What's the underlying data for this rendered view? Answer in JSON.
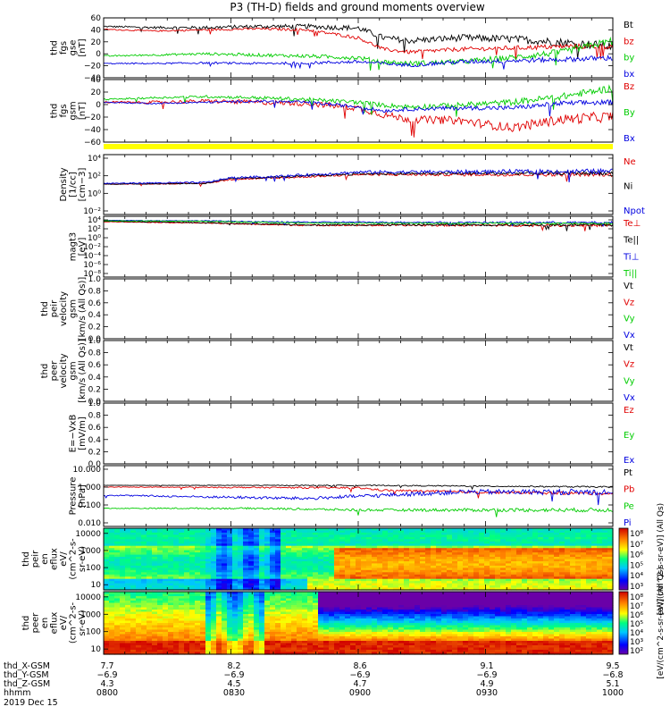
{
  "title": "P3 (TH-D) fields and ground moments overview",
  "chart_data": [
    {
      "id": "fgs_dsl",
      "type": "line",
      "ylabel": [
        "thd",
        "fgs",
        "gse",
        "[nT]"
      ],
      "yticks": [
        "60",
        "40",
        "20",
        "0",
        "−20",
        "−40"
      ],
      "ylim": [
        -40,
        65
      ],
      "series": [
        {
          "name": "Bt",
          "color": "#000000",
          "x": [
            0,
            0.1,
            0.2,
            0.3,
            0.4,
            0.5,
            0.55,
            0.6,
            0.7,
            0.8,
            0.9,
            1.0
          ],
          "y": [
            50,
            48,
            48,
            50,
            50,
            47,
            30,
            25,
            30,
            28,
            22,
            15
          ],
          "noise": 5
        },
        {
          "name": "bz",
          "color": "#e00000",
          "x": [
            0,
            0.1,
            0.2,
            0.3,
            0.4,
            0.5,
            0.55,
            0.6,
            0.7,
            0.8,
            0.9,
            1.0
          ],
          "y": [
            45,
            42,
            44,
            46,
            44,
            30,
            10,
            5,
            10,
            12,
            15,
            15
          ],
          "noise": 3
        },
        {
          "name": "by",
          "color": "#00cc00",
          "x": [
            0,
            0.1,
            0.2,
            0.3,
            0.4,
            0.5,
            0.55,
            0.6,
            0.7,
            0.8,
            0.9,
            1.0
          ],
          "y": [
            -2,
            0,
            2,
            0,
            -2,
            -5,
            -12,
            -15,
            -12,
            -5,
            5,
            25
          ],
          "noise": 4
        },
        {
          "name": "bx",
          "color": "#0000e0",
          "x": [
            0,
            0.1,
            0.2,
            0.3,
            0.4,
            0.5,
            0.55,
            0.6,
            0.7,
            0.8,
            0.9,
            1.0
          ],
          "y": [
            -15,
            -15,
            -14,
            -15,
            -14,
            -12,
            -15,
            -18,
            -12,
            -10,
            -8,
            -5
          ],
          "noise": 3
        }
      ]
    },
    {
      "id": "fgs_gsm",
      "type": "line",
      "ylabel": [
        "thd",
        "fgs",
        "gsm",
        "[nT]"
      ],
      "yticks": [
        "40",
        "20",
        "0",
        "−20",
        "−40",
        "−60"
      ],
      "ylim": [
        -70,
        40
      ],
      "series": [
        {
          "name": "Bz",
          "color": "#e00000",
          "x": [
            0,
            0.1,
            0.2,
            0.3,
            0.4,
            0.5,
            0.55,
            0.6,
            0.7,
            0.8,
            0.9,
            1.0
          ],
          "y": [
            0,
            0,
            2,
            0,
            -2,
            -10,
            -22,
            -30,
            -32,
            -45,
            -30,
            -25
          ],
          "noise": 6
        },
        {
          "name": "By",
          "color": "#00cc00",
          "x": [
            0,
            0.1,
            0.2,
            0.3,
            0.4,
            0.5,
            0.55,
            0.6,
            0.7,
            0.8,
            0.9,
            1.0
          ],
          "y": [
            5,
            8,
            10,
            8,
            5,
            0,
            -5,
            -8,
            -5,
            0,
            10,
            25
          ],
          "noise": 4
        },
        {
          "name": "Bx",
          "color": "#0000e0",
          "x": [
            0,
            0.1,
            0.2,
            0.3,
            0.4,
            0.5,
            0.55,
            0.6,
            0.7,
            0.8,
            0.9,
            1.0
          ],
          "y": [
            0,
            -2,
            0,
            2,
            0,
            -8,
            -15,
            -12,
            -10,
            -10,
            -2,
            0
          ],
          "noise": 3
        }
      ]
    },
    {
      "id": "density",
      "type": "line",
      "ylabel": [
        "Density",
        "[1/cc]",
        "[cm−3]"
      ],
      "yticks": [
        "10⁴",
        "10²",
        "10⁰",
        "10⁻²"
      ],
      "ylim": [
        -3,
        4.5
      ],
      "log": true,
      "series": [
        {
          "name": "Ne",
          "color": "#e00000",
          "x": [
            0,
            0.2,
            0.25,
            0.35,
            0.5,
            1.0
          ],
          "y": [
            0.8,
            0.9,
            1.4,
            1.6,
            2.0,
            2.0
          ],
          "noise": 0.15
        },
        {
          "name": "Ni",
          "color": "#000000",
          "x": [
            0,
            0.2,
            0.25,
            0.35,
            0.5,
            1.0
          ],
          "y": [
            0.8,
            0.9,
            1.5,
            1.7,
            2.1,
            2.2
          ],
          "noise": 0.15
        },
        {
          "name": "Npot",
          "color": "#0000e0",
          "x": [
            0,
            0.2,
            0.25,
            0.35,
            0.5,
            1.0
          ],
          "y": [
            0.9,
            1.0,
            1.6,
            1.8,
            2.3,
            2.4
          ],
          "noise": 0.2
        }
      ]
    },
    {
      "id": "temperature",
      "type": "line",
      "ylabel": [
        "magt3",
        "[eV]"
      ],
      "yticks": [
        "10⁴",
        "10²",
        "10⁰",
        "10⁻²",
        "10⁻⁴",
        "10⁻⁶",
        "10⁻⁸"
      ],
      "ylim": [
        -9,
        4.5
      ],
      "log": true,
      "series": [
        {
          "name": "Te⊥",
          "color": "#e00000",
          "x": [
            0,
            0.2,
            0.3,
            0.4,
            1.0
          ],
          "y": [
            3.3,
            3.0,
            2.7,
            2.5,
            2.5
          ],
          "noise": 0.2
        },
        {
          "name": "Te||",
          "color": "#000000",
          "x": [
            0,
            0.2,
            0.3,
            0.4,
            1.0
          ],
          "y": [
            3.4,
            3.1,
            2.8,
            2.6,
            2.6
          ],
          "noise": 0.2
        },
        {
          "name": "Ti⊥",
          "color": "#0000e0",
          "x": [
            0,
            0.2,
            0.3,
            0.4,
            1.0
          ],
          "y": [
            3.6,
            3.5,
            3.3,
            3.2,
            3.1
          ],
          "noise": 0.15
        },
        {
          "name": "Ti||",
          "color": "#00cc00",
          "x": [
            0,
            0.2,
            0.3,
            0.4,
            1.0
          ],
          "y": [
            3.5,
            3.4,
            3.2,
            3.0,
            2.9
          ],
          "noise": 0.15
        }
      ]
    },
    {
      "id": "peir_velocity",
      "type": "line",
      "ylabel": [
        "thd",
        "peir",
        "velocity",
        "gsm",
        "[km/s (All Qs)]"
      ],
      "yticks": [
        "1.0",
        "0.8",
        "0.6",
        "0.4",
        "0.2",
        "0.0"
      ],
      "ylim": [
        0,
        1
      ],
      "series": [
        {
          "name": "Vt",
          "color": "#000000",
          "x": [],
          "y": []
        },
        {
          "name": "Vz",
          "color": "#e00000",
          "x": [],
          "y": []
        },
        {
          "name": "Vy",
          "color": "#00cc00",
          "x": [],
          "y": []
        },
        {
          "name": "Vx",
          "color": "#0000e0",
          "x": [],
          "y": []
        }
      ]
    },
    {
      "id": "peer_velocity",
      "type": "line",
      "ylabel": [
        "thd",
        "peer",
        "velocity",
        "gsm",
        "[km/s (All Qs)]"
      ],
      "yticks": [
        "1.0",
        "0.8",
        "0.6",
        "0.4",
        "0.2",
        "0.0"
      ],
      "ylim": [
        0,
        1
      ],
      "series": [
        {
          "name": "Vt",
          "color": "#000000",
          "x": [],
          "y": []
        },
        {
          "name": "Vz",
          "color": "#e00000",
          "x": [],
          "y": []
        },
        {
          "name": "Vy",
          "color": "#00cc00",
          "x": [],
          "y": []
        },
        {
          "name": "Vx",
          "color": "#0000e0",
          "x": [],
          "y": []
        }
      ]
    },
    {
      "id": "efield",
      "type": "line",
      "ylabel": [
        "E=−VxB",
        "[mV/m]"
      ],
      "yticks": [
        "1.0",
        "0.8",
        "0.6",
        "0.4",
        "0.2",
        "0.0"
      ],
      "ylim": [
        0,
        1
      ],
      "series": [
        {
          "name": "Ez",
          "color": "#e00000",
          "x": [],
          "y": []
        },
        {
          "name": "Ey",
          "color": "#00cc00",
          "x": [],
          "y": []
        },
        {
          "name": "Ex",
          "color": "#0000e0",
          "x": [],
          "y": []
        }
      ]
    },
    {
      "id": "pressure",
      "type": "line",
      "ylabel": [
        "Pressure",
        "[nPa]"
      ],
      "yticks": [
        "10.000",
        "1.000",
        "0.100",
        "0.010"
      ],
      "ylim": [
        -2.5,
        1.2
      ],
      "log": true,
      "series": [
        {
          "name": "Pt",
          "color": "#000000",
          "x": [
            0,
            0.5,
            1.0
          ],
          "y": [
            0.0,
            0.0,
            -0.1
          ],
          "noise": 0.03
        },
        {
          "name": "Pb",
          "color": "#e00000",
          "x": [
            0,
            0.5,
            0.55,
            0.7,
            1.0
          ],
          "y": [
            -0.1,
            -0.15,
            -0.3,
            -0.4,
            -0.5
          ],
          "noise": 0.06
        },
        {
          "name": "Pe",
          "color": "#00cc00",
          "x": [
            0,
            0.3,
            0.5,
            1.0
          ],
          "y": [
            -1.4,
            -1.4,
            -1.5,
            -1.5
          ],
          "noise": 0.08
        },
        {
          "name": "Pi",
          "color": "#0000e0",
          "x": [
            0,
            0.2,
            0.4,
            0.55,
            0.7,
            1.0
          ],
          "y": [
            -0.6,
            -0.7,
            -0.8,
            -0.6,
            -0.4,
            -0.4
          ],
          "noise": 0.12
        }
      ]
    },
    {
      "id": "peir_eflux",
      "type": "heatmap",
      "ylabel": [
        "thd",
        "peir",
        "en",
        "eflux",
        "eV/",
        "(cm^2-s-",
        "sr-eV)"
      ],
      "yticks": [
        "10000",
        "1000",
        "100",
        "10"
      ],
      "ylim": [
        5,
        20000
      ],
      "log": true,
      "colorbar": {
        "label": "[eV/(cm^2-s-sr-eV)] (All Qs)",
        "ticks": [
          "10⁸",
          "10⁷",
          "10⁶",
          "10⁵",
          "10⁴",
          "10³"
        ]
      }
    },
    {
      "id": "peer_eflux",
      "type": "heatmap",
      "ylabel": [
        "thd",
        "peer",
        "en",
        "eflux",
        "eV/",
        "(cm^2-s-",
        "sr-eV)"
      ],
      "yticks": [
        "10000",
        "1000",
        "100",
        "10"
      ],
      "ylim": [
        5,
        20000
      ],
      "log": true,
      "colorbar": {
        "label": "[eV/(cm^2-s-sr-eV)] (All Qs)",
        "ticks": [
          "10⁸",
          "10⁷",
          "10⁶",
          "10⁵",
          "10⁴",
          "10³",
          "10²"
        ]
      }
    }
  ],
  "ephemeris": {
    "rows": [
      {
        "label": "thd_X-GSM",
        "values": [
          "7.7",
          "8.2",
          "8.6",
          "9.1",
          "9.5"
        ]
      },
      {
        "label": "thd_Y-GSM",
        "values": [
          "−6.9",
          "−6.9",
          "−6.9",
          "−6.9",
          "−6.8"
        ]
      },
      {
        "label": "thd_Z-GSM",
        "values": [
          "4.3",
          "4.5",
          "4.7",
          "4.9",
          "5.1"
        ]
      },
      {
        "label": "hhmm",
        "values": [
          "0800",
          "0830",
          "0900",
          "0930",
          "1000"
        ]
      }
    ],
    "date": "2019 Dec 15"
  }
}
